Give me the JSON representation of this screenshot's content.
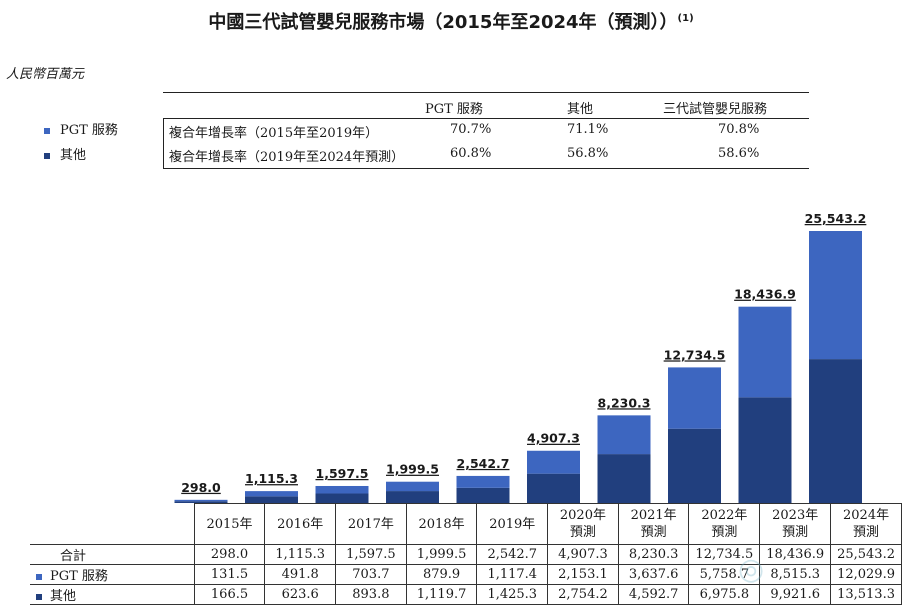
{
  "title": "中國三代試管嬰兒服務市場（2015年至2024年（預測））",
  "title_note": "(1)",
  "unit": "人民幣百萬元",
  "cagr_table": {
    "columns": [
      "PGT 服務",
      "其他",
      "三代試管嬰兒服務"
    ],
    "rows": [
      {
        "label": "複合年增長率（2015年至2019年）",
        "values": [
          "70.7%",
          "71.1%",
          "70.8%"
        ]
      },
      {
        "label": "複合年增長率（2019年至2024年預測）",
        "values": [
          "60.8%",
          "56.8%",
          "58.6%"
        ]
      }
    ]
  },
  "legend": [
    {
      "label": "PGT 服務",
      "color": "#3D66C0"
    },
    {
      "label": "其他",
      "color": "#213F7E"
    }
  ],
  "colors": {
    "pgt": "#3D66C0",
    "other": "#213F7E"
  },
  "chart_data": {
    "type": "bar",
    "stacked": true,
    "categories": [
      "2015年",
      "2016年",
      "2017年",
      "2018年",
      "2019年",
      "2020年\n預測",
      "2021年\n預測",
      "2022年\n預測",
      "2023年\n預測",
      "2024年\n預測"
    ],
    "series": [
      {
        "name": "其他",
        "values": [
          166.5,
          623.6,
          893.8,
          1119.7,
          1425.3,
          2754.2,
          4592.7,
          6975.8,
          9921.6,
          13513.3
        ]
      },
      {
        "name": "PGT 服務",
        "values": [
          131.5,
          491.8,
          703.7,
          879.9,
          1117.4,
          2153.1,
          3637.6,
          5758.7,
          8515.3,
          12029.9
        ]
      }
    ],
    "totals": [
      "298.0",
      "1,115.3",
      "1,597.5",
      "1,999.5",
      "2,542.7",
      "4,907.3",
      "8,230.3",
      "12,734.5",
      "18,436.9",
      "25,543.2"
    ],
    "ylim": [
      0,
      25543.2
    ]
  },
  "data_table": {
    "rows": [
      {
        "label": "合計",
        "values": [
          "298.0",
          "1,115.3",
          "1,597.5",
          "1,999.5",
          "2,542.7",
          "4,907.3",
          "8,230.3",
          "12,734.5",
          "18,436.9",
          "25,543.2"
        ]
      },
      {
        "label": "PGT 服務",
        "values": [
          "131.5",
          "491.8",
          "703.7",
          "879.9",
          "1,117.4",
          "2,153.1",
          "3,637.6",
          "5,758.7",
          "8,515.3",
          "12,029.9"
        ]
      },
      {
        "label": "其他",
        "values": [
          "166.5",
          "623.6",
          "893.8",
          "1,119.7",
          "1,425.3",
          "2,754.2",
          "4,592.7",
          "6,975.8",
          "9,921.6",
          "13,513.3"
        ]
      }
    ]
  }
}
